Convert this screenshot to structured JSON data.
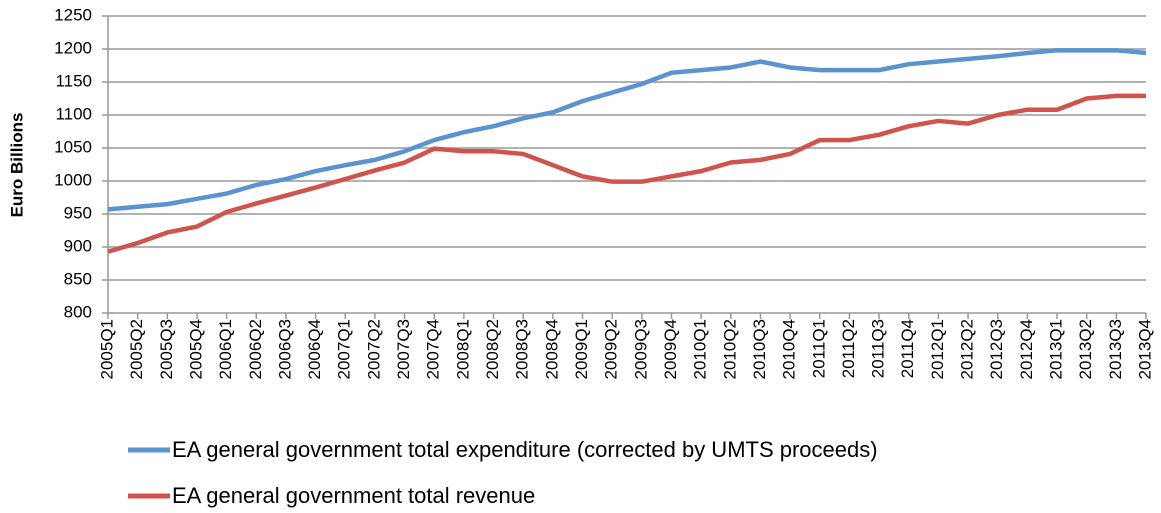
{
  "chart_data": {
    "type": "line",
    "y_label": "Euro Billions",
    "categories": [
      "2005Q1",
      "2005Q2",
      "2005Q3",
      "2005Q4",
      "2006Q1",
      "2006Q2",
      "2006Q3",
      "2006Q4",
      "2007Q1",
      "2007Q2",
      "2007Q3",
      "2007Q4",
      "2008Q1",
      "2008Q2",
      "2008Q3",
      "2008Q4",
      "2009Q1",
      "2009Q2",
      "2009Q3",
      "2009Q4",
      "2010Q1",
      "2010Q2",
      "2010Q3",
      "2010Q4",
      "2011Q1",
      "2011Q2",
      "2011Q3",
      "2011Q4",
      "2012Q1",
      "2012Q2",
      "2012Q3",
      "2012Q4",
      "2013Q1",
      "2013Q2",
      "2013Q3",
      "2013Q4"
    ],
    "series": [
      {
        "name": "EA general government total expenditure (corrected by UMTS proceeds)",
        "color": "#5b93d1",
        "values": [
          957,
          961,
          965,
          973,
          981,
          994,
          1003,
          1015,
          1024,
          1032,
          1045,
          1062,
          1074,
          1083,
          1095,
          1104,
          1121,
          1134,
          1147,
          1164,
          1168,
          1172,
          1181,
          1172,
          1168,
          1168,
          1168,
          1177,
          1181,
          1185,
          1189,
          1194,
          1198,
          1198,
          1198,
          1194
        ]
      },
      {
        "name": "EA general government total revenue",
        "color": "#d0534e",
        "values": [
          893,
          906,
          922,
          931,
          953,
          966,
          978,
          990,
          1003,
          1016,
          1028,
          1049,
          1045,
          1045,
          1041,
          1024,
          1007,
          999,
          999,
          1007,
          1015,
          1028,
          1032,
          1041,
          1062,
          1062,
          1070,
          1083,
          1091,
          1087,
          1100,
          1108,
          1108,
          1125,
          1129,
          1129
        ]
      }
    ],
    "ylim": [
      800,
      1250
    ],
    "yticks": [
      800,
      850,
      900,
      950,
      1000,
      1050,
      1100,
      1150,
      1200,
      1250
    ],
    "grid": true
  }
}
